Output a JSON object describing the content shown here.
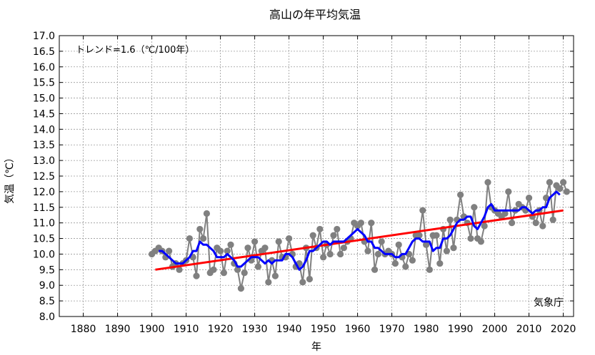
{
  "chart_data": {
    "type": "line",
    "title": "高山の年平均気温",
    "xlabel": "年",
    "ylabel": "気温（℃）",
    "trend_text": "トレンド=1.6（℃/100年）",
    "credit": "気象庁",
    "xlim": [
      1873,
      2023
    ],
    "ylim": [
      8.0,
      17.0
    ],
    "xticks": [
      1880,
      1890,
      1900,
      1910,
      1920,
      1930,
      1940,
      1950,
      1960,
      1970,
      1980,
      1990,
      2000,
      2010,
      2020
    ],
    "yticks": [
      8.0,
      8.5,
      9.0,
      9.5,
      10.0,
      10.5,
      11.0,
      11.5,
      12.0,
      12.5,
      13.0,
      13.5,
      14.0,
      14.5,
      15.0,
      15.5,
      16.0,
      16.5,
      17.0
    ],
    "grid": true,
    "colors": {
      "annual": "#808080",
      "moving_avg": "#0000ff",
      "trend": "#ff0000"
    },
    "series": [
      {
        "role": "annual",
        "x": [
          1900,
          1901,
          1902,
          1903,
          1904,
          1905,
          1906,
          1907,
          1908,
          1909,
          1910,
          1911,
          1912,
          1913,
          1914,
          1915,
          1916,
          1917,
          1918,
          1919,
          1920,
          1921,
          1922,
          1923,
          1924,
          1925,
          1926,
          1927,
          1928,
          1929,
          1930,
          1931,
          1932,
          1933,
          1934,
          1935,
          1936,
          1937,
          1938,
          1939,
          1940,
          1941,
          1942,
          1943,
          1944,
          1945,
          1946,
          1947,
          1948,
          1949,
          1950,
          1951,
          1952,
          1953,
          1954,
          1955,
          1956,
          1957,
          1958,
          1959,
          1960,
          1961,
          1962,
          1963,
          1964,
          1965,
          1966,
          1967,
          1968,
          1969,
          1970,
          1971,
          1972,
          1973,
          1974,
          1975,
          1976,
          1977,
          1978,
          1979,
          1980,
          1981,
          1982,
          1983,
          1984,
          1985,
          1986,
          1987,
          1988,
          1989,
          1990,
          1991,
          1992,
          1993,
          1994,
          1995,
          1996,
          1997,
          1998,
          1999,
          2000,
          2001,
          2002,
          2003,
          2004,
          2005,
          2006,
          2007,
          2008,
          2009,
          2010,
          2011,
          2012,
          2013,
          2014,
          2015,
          2016,
          2017,
          2018,
          2019,
          2020,
          2021
        ],
        "y": [
          10.0,
          10.1,
          10.2,
          10.1,
          9.9,
          10.1,
          9.6,
          9.7,
          9.5,
          9.7,
          9.8,
          10.5,
          9.9,
          9.3,
          10.8,
          10.5,
          11.3,
          9.4,
          9.5,
          10.2,
          10.1,
          9.4,
          10.1,
          10.3,
          9.7,
          9.5,
          8.9,
          9.4,
          10.2,
          9.8,
          10.4,
          9.6,
          10.1,
          10.2,
          9.1,
          9.8,
          9.3,
          10.4,
          9.9,
          9.9,
          10.5,
          10.0,
          9.6,
          9.7,
          9.1,
          10.2,
          9.2,
          10.6,
          10.2,
          10.8,
          9.9,
          10.3,
          10.0,
          10.6,
          10.8,
          10.0,
          10.2,
          10.4,
          10.5,
          11.0,
          10.9,
          11.0,
          10.4,
          10.1,
          11.0,
          9.5,
          10.0,
          10.4,
          10.0,
          10.1,
          10.0,
          9.7,
          10.3,
          9.9,
          9.6,
          10.0,
          9.8,
          10.6,
          10.6,
          11.4,
          10.3,
          9.5,
          10.6,
          10.6,
          9.7,
          10.8,
          10.1,
          11.1,
          10.2,
          11.1,
          11.9,
          11.2,
          11.0,
          10.5,
          11.5,
          10.5,
          10.4,
          10.9,
          12.3,
          11.5,
          11.4,
          11.3,
          11.2,
          11.3,
          12.0,
          11.0,
          11.4,
          11.6,
          11.5,
          11.4,
          11.8,
          11.2,
          11.0,
          11.4,
          10.9,
          11.8,
          12.3,
          11.1,
          12.2,
          12.1,
          12.3,
          12.0
        ]
      },
      {
        "role": "moving_avg",
        "x": [
          1902,
          1903,
          1904,
          1905,
          1906,
          1907,
          1908,
          1909,
          1910,
          1911,
          1912,
          1913,
          1914,
          1915,
          1916,
          1917,
          1918,
          1919,
          1920,
          1921,
          1922,
          1923,
          1924,
          1925,
          1926,
          1927,
          1928,
          1929,
          1930,
          1931,
          1932,
          1933,
          1934,
          1935,
          1936,
          1937,
          1938,
          1939,
          1940,
          1941,
          1942,
          1943,
          1944,
          1945,
          1946,
          1947,
          1948,
          1949,
          1950,
          1951,
          1952,
          1953,
          1954,
          1955,
          1956,
          1957,
          1958,
          1959,
          1960,
          1961,
          1962,
          1963,
          1964,
          1965,
          1966,
          1967,
          1968,
          1969,
          1970,
          1971,
          1972,
          1973,
          1974,
          1975,
          1976,
          1977,
          1978,
          1979,
          1980,
          1981,
          1982,
          1983,
          1984,
          1985,
          1986,
          1987,
          1988,
          1989,
          1990,
          1991,
          1992,
          1993,
          1994,
          1995,
          1996,
          1997,
          1998,
          1999,
          2000,
          2001,
          2002,
          2003,
          2004,
          2005,
          2006,
          2007,
          2008,
          2009,
          2010,
          2011,
          2012,
          2013,
          2014,
          2015,
          2016,
          2017,
          2018,
          2019
        ],
        "y": [
          10.1,
          10.1,
          10.0,
          9.9,
          9.8,
          9.7,
          9.7,
          9.7,
          9.8,
          9.9,
          10.1,
          10.1,
          10.4,
          10.3,
          10.3,
          10.2,
          10.1,
          9.9,
          9.9,
          9.9,
          10.0,
          9.9,
          9.8,
          9.6,
          9.6,
          9.7,
          9.8,
          9.9,
          9.9,
          9.9,
          9.8,
          9.7,
          9.8,
          9.7,
          9.8,
          9.8,
          9.8,
          10.0,
          10.0,
          9.9,
          9.7,
          9.5,
          9.6,
          9.8,
          10.1,
          10.1,
          10.2,
          10.3,
          10.4,
          10.4,
          10.3,
          10.4,
          10.4,
          10.4,
          10.4,
          10.5,
          10.6,
          10.7,
          10.8,
          10.7,
          10.6,
          10.4,
          10.4,
          10.2,
          10.2,
          10.1,
          10.0,
          10.0,
          10.0,
          9.9,
          9.9,
          10.0,
          10.0,
          10.2,
          10.4,
          10.5,
          10.5,
          10.4,
          10.4,
          10.4,
          10.1,
          10.2,
          10.2,
          10.5,
          10.5,
          10.6,
          10.8,
          11.0,
          11.1,
          11.1,
          11.2,
          11.2,
          10.9,
          10.8,
          11.0,
          11.2,
          11.5,
          11.6,
          11.4,
          11.4,
          11.4,
          11.4,
          11.4,
          11.4,
          11.4,
          11.4,
          11.5,
          11.5,
          11.4,
          11.3,
          11.4,
          11.4,
          11.5,
          11.5,
          11.8,
          11.9,
          12.0,
          11.9
        ]
      },
      {
        "role": "trend",
        "x": [
          1901,
          2020
        ],
        "y": [
          9.5,
          11.4
        ]
      }
    ]
  }
}
